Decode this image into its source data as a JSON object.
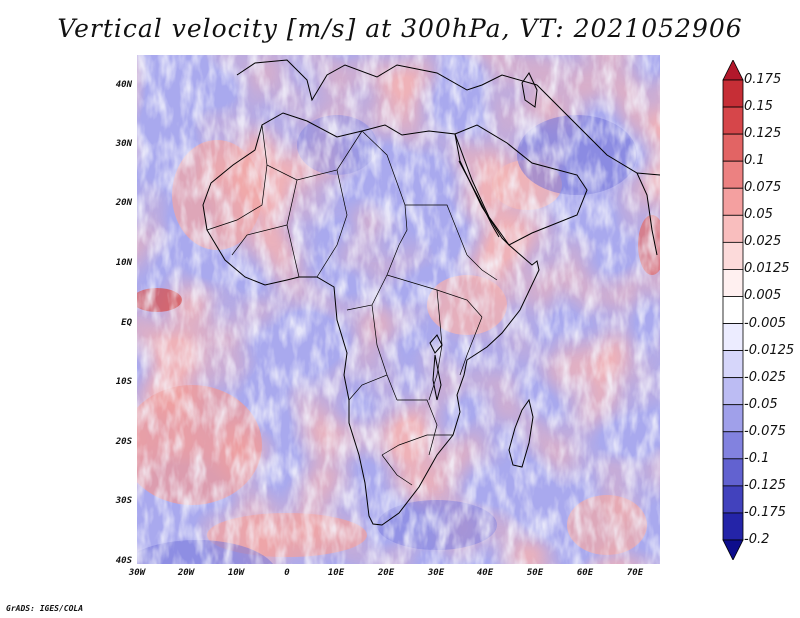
{
  "title": "Vertical velocity [m/s] at 300hPa, VT: 2021052906",
  "lat_labels": [
    "40N",
    "30N",
    "20N",
    "10N",
    "EQ",
    "10S",
    "20S",
    "30S",
    "40S"
  ],
  "lon_labels": [
    "30W",
    "20W",
    "10W",
    "0",
    "10E",
    "20E",
    "30E",
    "40E",
    "50E",
    "60E",
    "70E"
  ],
  "colorbar": {
    "labels": [
      "0.175",
      "0.15",
      "0.125",
      "0.1",
      "0.075",
      "0.05",
      "0.025",
      "0.0125",
      "0.005",
      "-0.005",
      "-0.0125",
      "-0.025",
      "-0.05",
      "-0.075",
      "-0.1",
      "-0.125",
      "-0.175",
      "-0.2"
    ],
    "colors": [
      "#b2182b",
      "#c62e36",
      "#d6464a",
      "#e26464",
      "#ec8181",
      "#f4a0a0",
      "#f9bebe",
      "#fcdada",
      "#fff0f0",
      "#ffffff",
      "#ececff",
      "#d6d6fa",
      "#bcbcf3",
      "#a0a0ea",
      "#8282df",
      "#6262d0",
      "#4242bd",
      "#2424a8",
      "#0d0d8c"
    ]
  },
  "credit": "GrADS: IGES/COLA"
}
